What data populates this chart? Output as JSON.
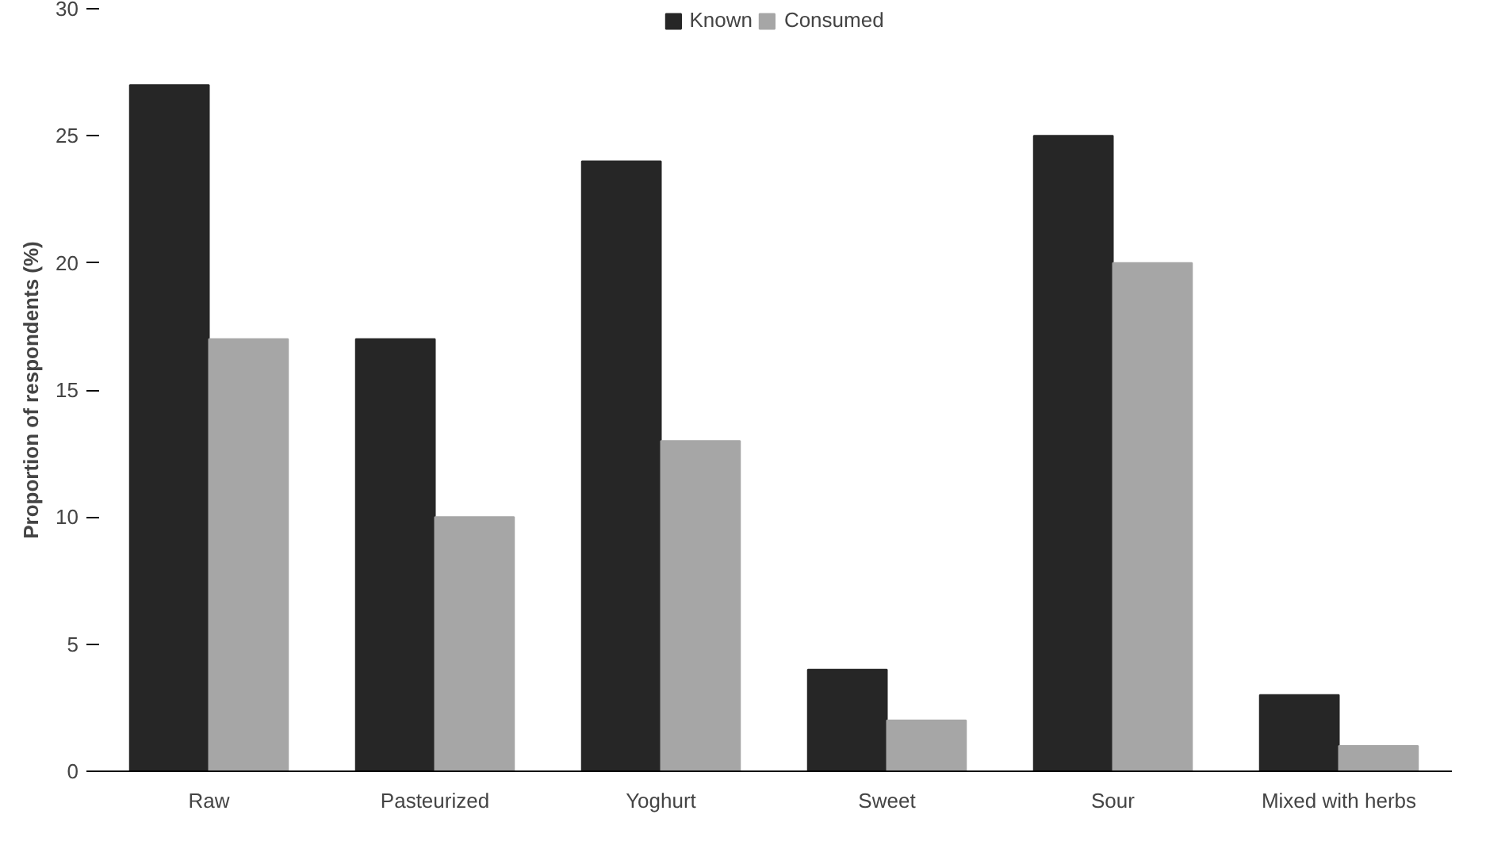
{
  "chart_data": {
    "type": "bar",
    "ylabel": "Proportion of respondents (%)",
    "categories": [
      "Raw",
      "Pasteurized",
      "Yoghurt",
      "Sweet",
      "Sour",
      "Mixed with herbs"
    ],
    "series": [
      {
        "name": "Known",
        "color": "#262626",
        "values": [
          27,
          17,
          24,
          4,
          25,
          3
        ]
      },
      {
        "name": "Consumed",
        "color": "#a6a6a6",
        "values": [
          17,
          10,
          13,
          2,
          20,
          1
        ]
      }
    ],
    "ylim": [
      0,
      30
    ],
    "yticks": [
      0,
      5,
      10,
      15,
      20,
      25,
      30
    ],
    "grid": false,
    "legend": "top"
  }
}
